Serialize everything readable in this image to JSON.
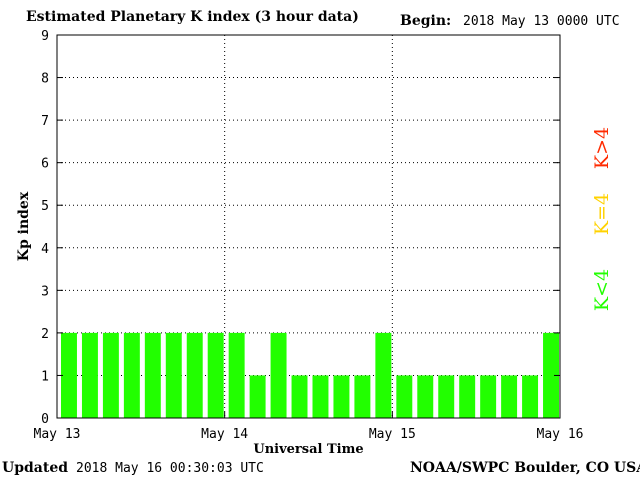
{
  "title": "Estimated Planetary K index (3 hour data)",
  "begin_label": "Begin:",
  "begin_value": "2018 May 13 0000 UTC",
  "updated_label": "Updated",
  "updated_value": "2018 May 16 00:30:03 UTC",
  "footer_credit": "NOAA/SWPC Boulder, CO USA",
  "legend": [
    {
      "text": "K>4",
      "color": "#ff2a00"
    },
    {
      "text": "K=4",
      "color": "#ffd200"
    },
    {
      "text": "K<4",
      "color": "#22ff00"
    }
  ],
  "chart_data": {
    "type": "bar",
    "title": "Estimated Planetary K index (3 hour data)",
    "xlabel": "Universal Time",
    "ylabel": "Kp index",
    "ylim": [
      0,
      9
    ],
    "yticks": [
      "0",
      "1",
      "2",
      "3",
      "4",
      "5",
      "6",
      "7",
      "8",
      "9"
    ],
    "xtick_labels": [
      "May 13",
      "May 14",
      "May 15",
      "May 16"
    ],
    "values": [
      2,
      2,
      2,
      2,
      2,
      2,
      2,
      2,
      2,
      1,
      2,
      1,
      1,
      1,
      1,
      2,
      1,
      1,
      1,
      1,
      1,
      1,
      1,
      2
    ],
    "bar_color": "#22ff00",
    "grid": true
  }
}
